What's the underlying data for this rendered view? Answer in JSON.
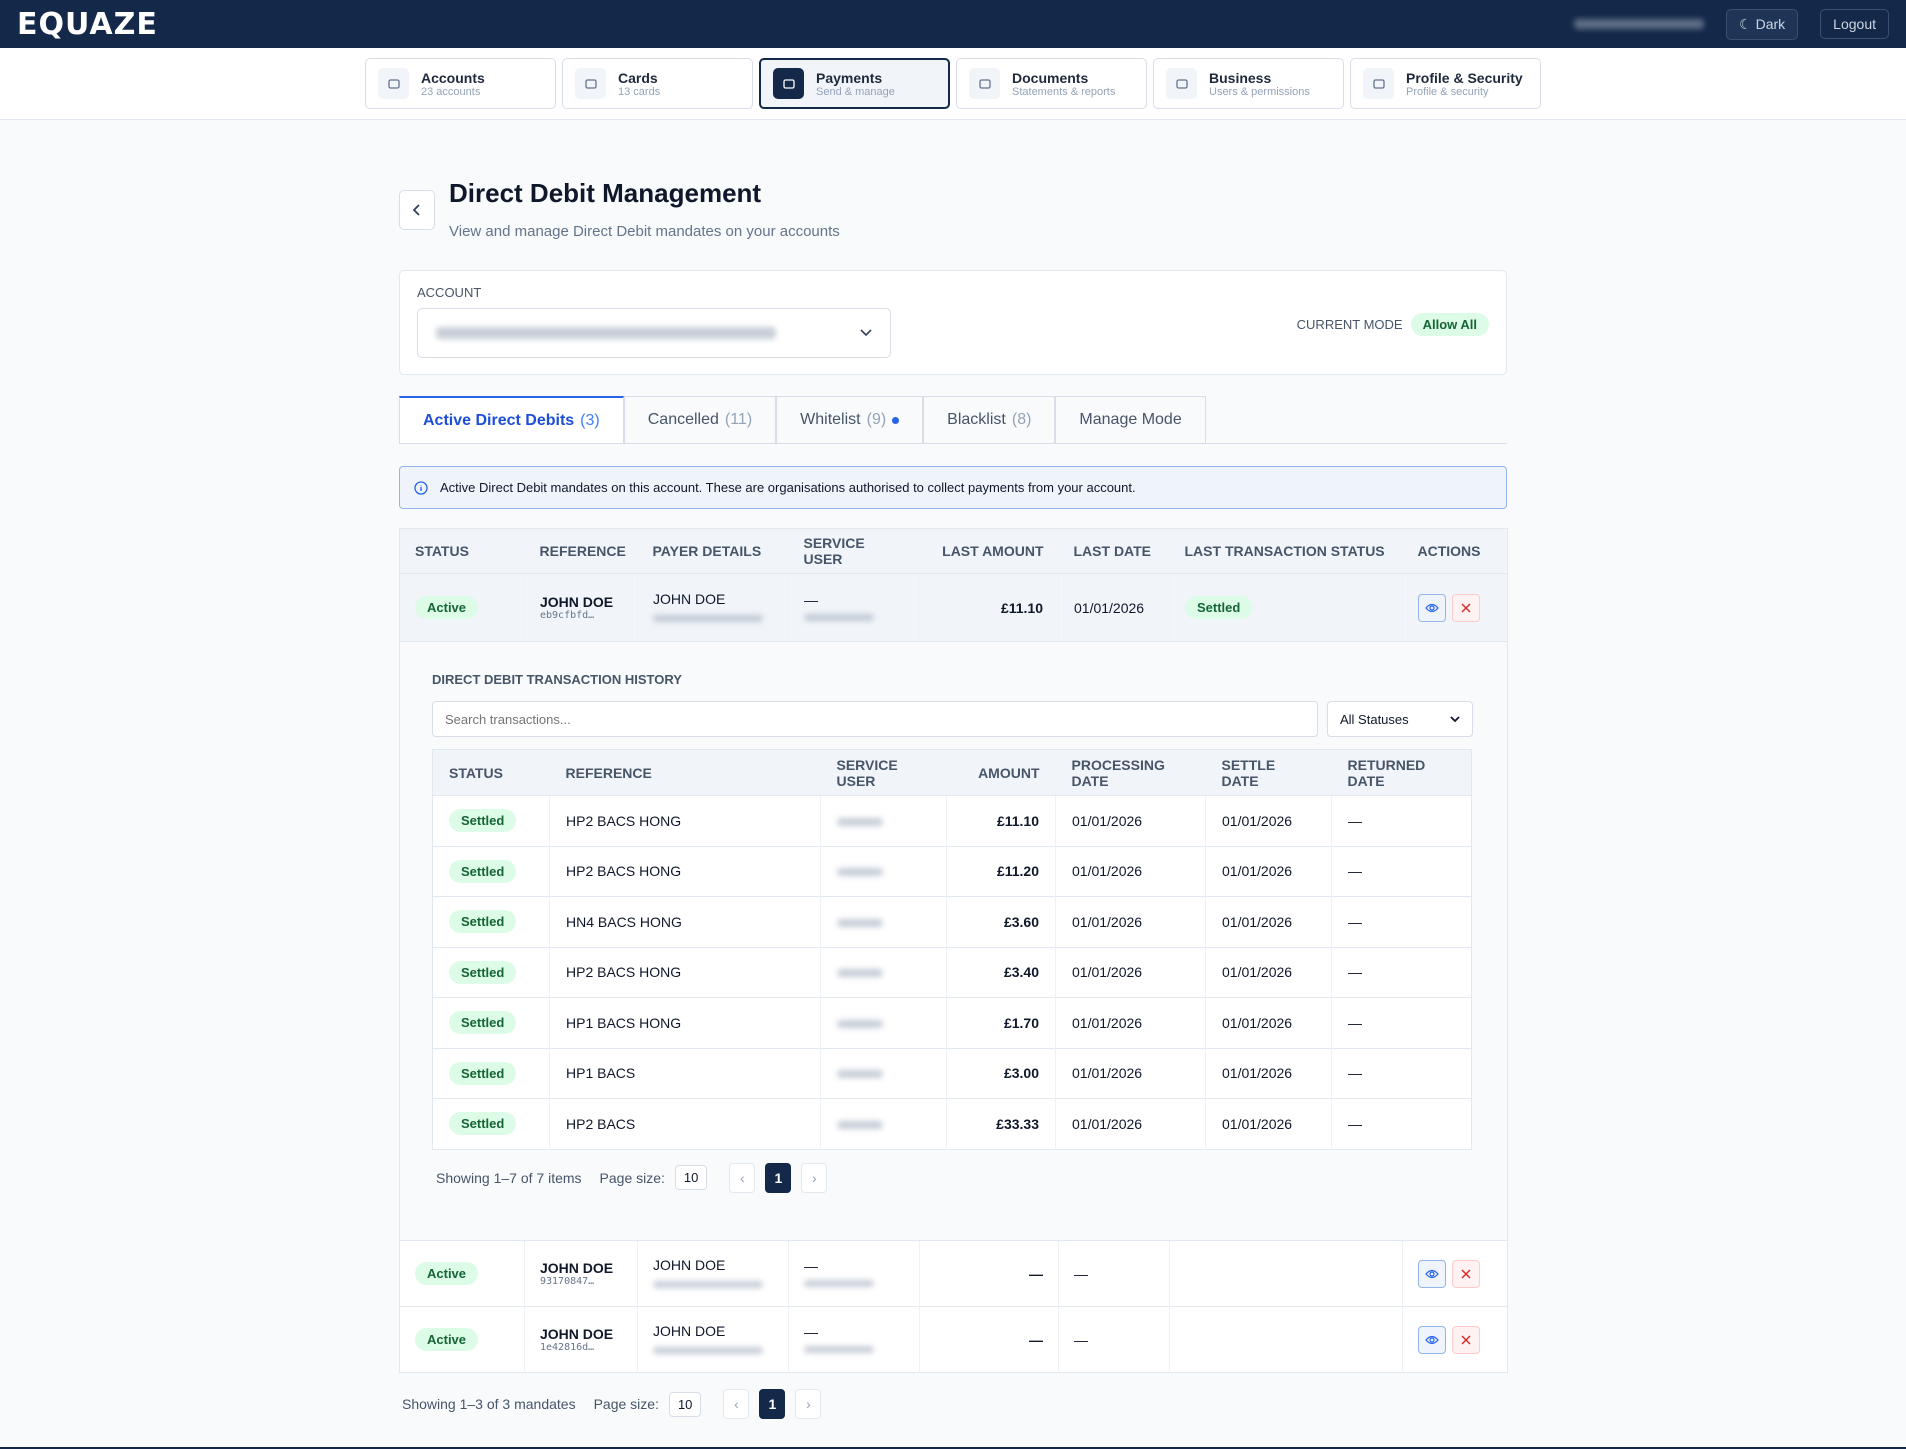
{
  "header": {
    "logo": "EQUAZE",
    "theme_button": "Dark",
    "logout_button": "Logout"
  },
  "nav": [
    {
      "label": "Accounts",
      "sub": "23 accounts"
    },
    {
      "label": "Cards",
      "sub": "13 cards"
    },
    {
      "label": "Payments",
      "sub": "Send & manage"
    },
    {
      "label": "Documents",
      "sub": "Statements & reports"
    },
    {
      "label": "Business",
      "sub": "Users & permissions"
    },
    {
      "label": "Profile & Security",
      "sub": "Profile & security"
    }
  ],
  "page": {
    "title": "Direct Debit Management",
    "subtitle": "View and manage Direct Debit mandates on your accounts"
  },
  "account": {
    "label": "ACCOUNT",
    "mode_label": "CURRENT MODE",
    "mode": "Allow All"
  },
  "tabs": [
    {
      "label": "Active Direct Debits",
      "count": "(3)"
    },
    {
      "label": "Cancelled",
      "count": "(11)"
    },
    {
      "label": "Whitelist",
      "count": "(9)"
    },
    {
      "label": "Blacklist",
      "count": "(8)"
    },
    {
      "label": "Manage Mode"
    }
  ],
  "info": "Active Direct Debit mandates on this account. These are organisations authorised to collect payments from your account.",
  "mandates": {
    "headers": [
      "STATUS",
      "REFERENCE",
      "PAYER DETAILS",
      "SERVICE USER",
      "LAST AMOUNT",
      "LAST DATE",
      "LAST TRANSACTION STATUS",
      "ACTIONS"
    ],
    "rows": [
      {
        "status": "Active",
        "reference": "JOHN DOE",
        "ref_id": "eb9cfbfd…",
        "payer": "JOHN DOE",
        "service_user": "—",
        "last_amount": "£11.10",
        "last_date": "01/01/2026",
        "last_status": "Settled"
      },
      {
        "status": "Active",
        "reference": "JOHN DOE",
        "ref_id": "93170847…",
        "payer": "JOHN DOE",
        "service_user": "—",
        "last_amount": "—",
        "last_date": "—",
        "last_status": null
      },
      {
        "status": "Active",
        "reference": "JOHN DOE",
        "ref_id": "1e42816d…",
        "payer": "JOHN DOE",
        "service_user": "—",
        "last_amount": "—",
        "last_date": "—",
        "last_status": null
      }
    ],
    "pagination": {
      "showing": "Showing 1–3 of 3 mandates",
      "page_size_label": "Page size:",
      "page_size": "10",
      "prev": "‹",
      "page": "1",
      "next": "›"
    }
  },
  "history": {
    "title": "DIRECT DEBIT TRANSACTION HISTORY",
    "search_placeholder": "Search transactions...",
    "filter": "All Statuses",
    "headers": [
      "STATUS",
      "REFERENCE",
      "SERVICE USER",
      "AMOUNT",
      "PROCESSING DATE",
      "SETTLE DATE",
      "RETURNED DATE"
    ],
    "rows": [
      {
        "status": "Settled",
        "reference": "HP2 BACS HONG",
        "amount": "£11.10",
        "processing_date": "01/01/2026",
        "settle_date": "01/01/2026",
        "returned_date": "—"
      },
      {
        "status": "Settled",
        "reference": "HP2 BACS HONG",
        "amount": "£11.20",
        "processing_date": "01/01/2026",
        "settle_date": "01/01/2026",
        "returned_date": "—"
      },
      {
        "status": "Settled",
        "reference": "HN4 BACS HONG",
        "amount": "£3.60",
        "processing_date": "01/01/2026",
        "settle_date": "01/01/2026",
        "returned_date": "—"
      },
      {
        "status": "Settled",
        "reference": "HP2 BACS HONG",
        "amount": "£3.40",
        "processing_date": "01/01/2026",
        "settle_date": "01/01/2026",
        "returned_date": "—"
      },
      {
        "status": "Settled",
        "reference": "HP1 BACS HONG",
        "amount": "£1.70",
        "processing_date": "01/01/2026",
        "settle_date": "01/01/2026",
        "returned_date": "—"
      },
      {
        "status": "Settled",
        "reference": "HP1 BACS",
        "amount": "£3.00",
        "processing_date": "01/01/2026",
        "settle_date": "01/01/2026",
        "returned_date": "—"
      },
      {
        "status": "Settled",
        "reference": "HP2 BACS",
        "amount": "£33.33",
        "processing_date": "01/01/2026",
        "settle_date": "01/01/2026",
        "returned_date": "—"
      }
    ],
    "pagination": {
      "showing": "Showing 1–7 of 7 items",
      "page_size_label": "Page size:",
      "page_size": "10",
      "prev": "‹",
      "page": "1",
      "next": "›"
    }
  }
}
